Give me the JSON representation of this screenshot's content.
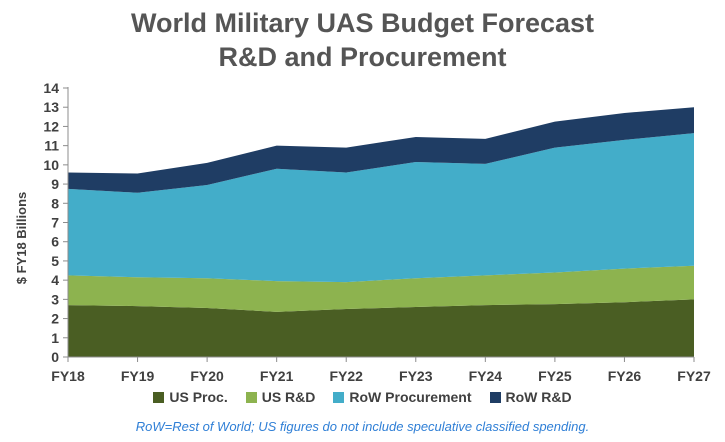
{
  "chart_data": {
    "type": "area",
    "stacked": true,
    "title_line1": "World Military UAS Budget Forecast",
    "title_line2": "R&D and Procurement",
    "xlabel": "",
    "ylabel": "$ FY18 Billions",
    "ylim": [
      0,
      14
    ],
    "yticks": [
      0,
      1,
      2,
      3,
      4,
      5,
      6,
      7,
      8,
      9,
      10,
      11,
      12,
      13,
      14
    ],
    "categories": [
      "FY18",
      "FY19",
      "FY20",
      "FY21",
      "FY22",
      "FY23",
      "FY24",
      "FY25",
      "FY26",
      "FY27"
    ],
    "grid": false,
    "legend_position": "bottom",
    "series": [
      {
        "name": "US Proc.",
        "color": "#4a5e23",
        "values": [
          2.7,
          2.65,
          2.55,
          2.35,
          2.5,
          2.6,
          2.7,
          2.75,
          2.85,
          3.0
        ]
      },
      {
        "name": "US R&D",
        "color": "#8db34f",
        "values": [
          1.55,
          1.5,
          1.55,
          1.6,
          1.4,
          1.5,
          1.55,
          1.65,
          1.75,
          1.75
        ]
      },
      {
        "name": "RoW Procurement",
        "color": "#43adc9",
        "values": [
          4.5,
          4.4,
          4.85,
          5.85,
          5.7,
          6.05,
          5.8,
          6.5,
          6.7,
          6.9
        ]
      },
      {
        "name": "RoW R&D",
        "color": "#1f3d64",
        "values": [
          0.85,
          1.0,
          1.15,
          1.2,
          1.3,
          1.3,
          1.3,
          1.35,
          1.4,
          1.35
        ]
      }
    ],
    "footnote": "RoW=Rest of World; US figures do not include speculative classified spending."
  }
}
